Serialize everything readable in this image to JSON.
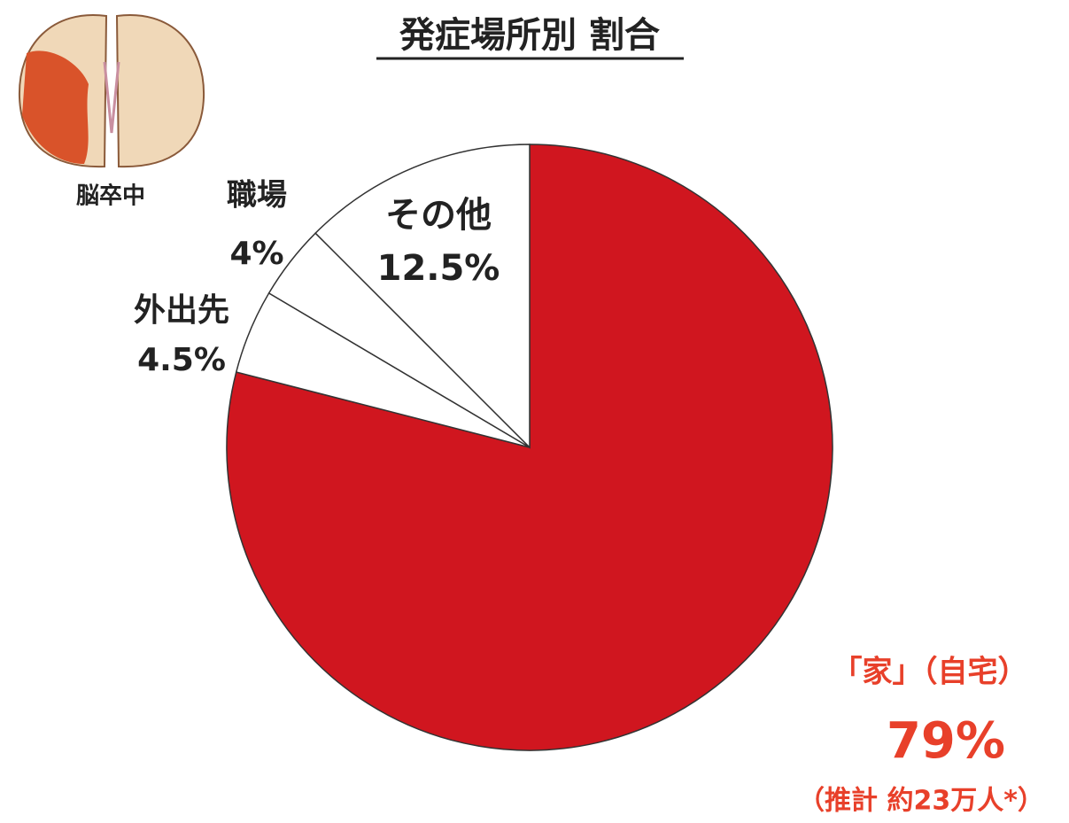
{
  "chart_data": {
    "type": "pie",
    "title": "発症場所別 割合",
    "categories": [
      "「家」（自宅）",
      "外出先",
      "職場",
      "その他"
    ],
    "values": [
      79,
      4.5,
      4,
      12.5
    ],
    "value_labels": [
      "79%",
      "4.5%",
      "4%",
      "12.5%"
    ],
    "colors": [
      "#d0161f",
      "#ffffff",
      "#ffffff",
      "#ffffff"
    ],
    "annotations": [
      "脳卒中",
      "（推計 約23万人*）"
    ]
  }
}
